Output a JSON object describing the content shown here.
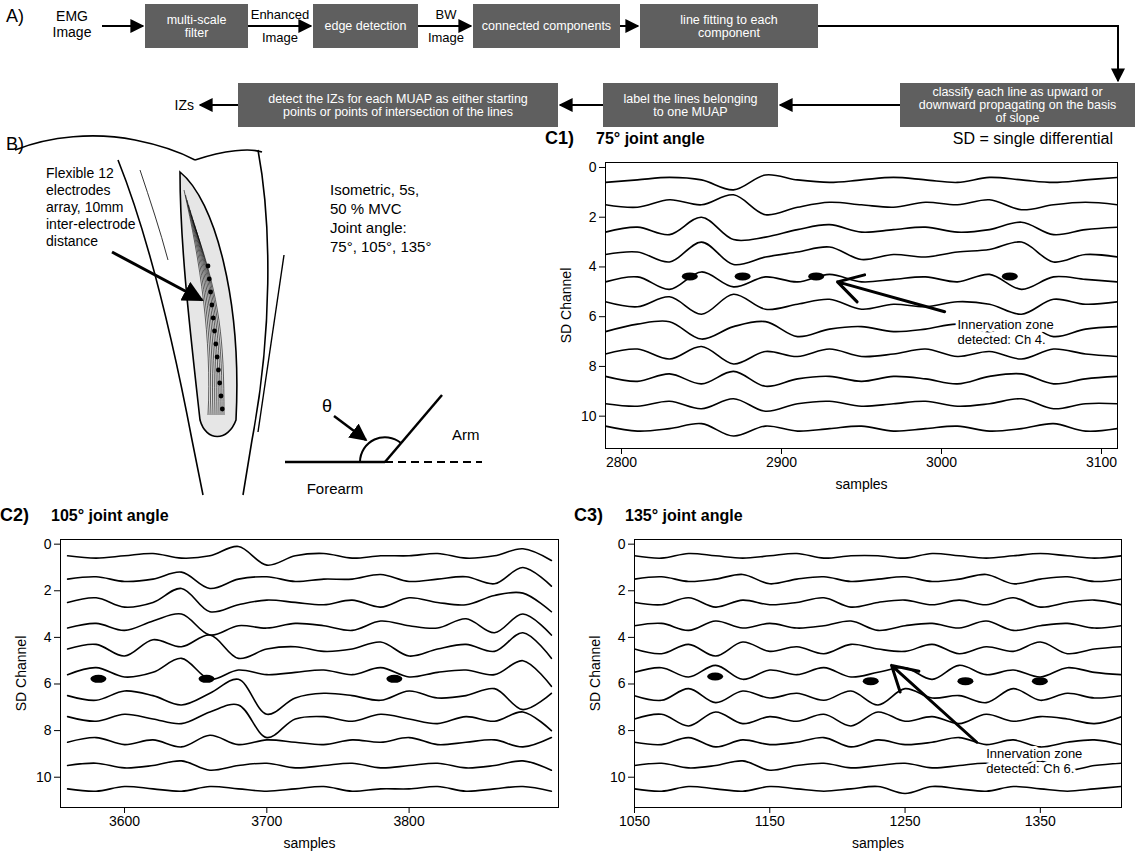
{
  "panel_a": {
    "label": "A)",
    "input": "EMG Image",
    "steps": [
      "multi-scale filter",
      "edge detection",
      "connected components",
      "line fitting to each component",
      "classify each line as upward or downward propagating on the basis of slope",
      "label the lines belonging to one MUAP",
      "detect the IZs for each MUAP as either starting points or points of intersection of the lines"
    ],
    "edge_labels": [
      "Enhanced Image",
      "BW Image"
    ],
    "output": "IZs"
  },
  "panel_b": {
    "label": "B)",
    "electrode_label": "Flexible 12 electrodes array, 10mm inter-electrode distance",
    "protocol": "Isometric, 5s, 50 % MVC",
    "joint_angle_label": "Joint angle:",
    "joint_angles": "75°, 105°, 135°",
    "angle_symbol": "θ",
    "arm_label": "Arm",
    "forearm_label": "Forearm"
  },
  "chart_data": [
    {
      "panel_label": "C1)",
      "type": "line",
      "title": "75° joint angle",
      "subtitle": "SD = single differential",
      "x_label": "samples",
      "y_label": "SD Channel",
      "color": "#000000",
      "xlim": [
        2790,
        3110
      ],
      "xticks": [
        2800,
        2900,
        3000,
        3100
      ],
      "ylim": [
        11.3,
        -0.2
      ],
      "yticks": [
        0,
        2,
        4,
        6,
        8,
        10
      ],
      "x": [
        2790,
        2810,
        2830,
        2850,
        2870,
        2890,
        2910,
        2930,
        2950,
        2970,
        2990,
        3010,
        3030,
        3050,
        3070,
        3090,
        3110
      ],
      "series": [
        {
          "values": [
            0.6,
            0.5,
            0.4,
            0.5,
            0.9,
            0.3,
            0.5,
            0.6,
            0.5,
            0.4,
            0.5,
            0.6,
            0.4,
            0.5,
            0.6,
            0.5,
            0.4
          ]
        },
        {
          "values": [
            1.5,
            1.6,
            1.3,
            1.5,
            1.1,
            1.9,
            1.6,
            1.4,
            1.5,
            1.6,
            1.4,
            1.5,
            1.3,
            1.7,
            1.5,
            1.4,
            1.5
          ]
        },
        {
          "values": [
            2.6,
            2.4,
            2.7,
            2.0,
            2.9,
            2.8,
            2.5,
            2.3,
            2.6,
            2.5,
            2.4,
            2.6,
            2.5,
            2.2,
            2.7,
            2.5,
            2.4
          ]
        },
        {
          "values": [
            3.5,
            3.4,
            3.8,
            3.0,
            3.9,
            3.6,
            3.4,
            3.2,
            3.7,
            3.5,
            3.6,
            3.4,
            3.3,
            3.0,
            3.8,
            3.5,
            3.6
          ]
        },
        {
          "values": [
            4.6,
            4.4,
            4.9,
            4.2,
            4.8,
            4.4,
            4.6,
            4.3,
            4.6,
            4.5,
            4.4,
            4.6,
            4.3,
            4.9,
            4.4,
            4.5,
            4.6
          ]
        },
        {
          "values": [
            5.4,
            5.6,
            5.2,
            5.9,
            5.1,
            5.7,
            5.5,
            5.3,
            5.7,
            5.5,
            5.6,
            5.4,
            5.5,
            5.9,
            5.3,
            5.5,
            5.4
          ]
        },
        {
          "values": [
            6.6,
            6.3,
            6.2,
            6.9,
            6.4,
            6.2,
            6.8,
            6.5,
            6.4,
            6.6,
            6.5,
            6.3,
            6.6,
            6.2,
            6.8,
            6.5,
            6.4
          ]
        },
        {
          "values": [
            7.5,
            7.3,
            7.7,
            7.2,
            7.9,
            7.4,
            7.6,
            7.3,
            7.6,
            7.5,
            7.3,
            7.6,
            7.4,
            7.7,
            7.3,
            7.5,
            7.6
          ]
        },
        {
          "values": [
            8.4,
            8.6,
            8.3,
            8.7,
            8.2,
            8.8,
            8.5,
            8.4,
            8.6,
            8.4,
            8.5,
            8.7,
            8.4,
            8.3,
            8.7,
            8.5,
            8.4
          ]
        },
        {
          "values": [
            9.5,
            9.6,
            9.4,
            9.7,
            9.3,
            9.8,
            9.5,
            9.4,
            9.6,
            9.5,
            9.4,
            9.6,
            9.5,
            9.3,
            9.7,
            9.5,
            9.5
          ]
        },
        {
          "values": [
            10.4,
            10.6,
            10.5,
            10.3,
            10.8,
            10.4,
            10.6,
            10.5,
            10.4,
            10.6,
            10.5,
            10.4,
            10.6,
            10.5,
            10.3,
            10.6,
            10.5
          ]
        },
        {
          "type": "scatter",
          "marker": "ellipse",
          "color": "#000000",
          "x": [
            2843,
            2876,
            2922,
            3043
          ],
          "values": [
            4.4,
            4.4,
            4.4,
            4.4
          ]
        }
      ],
      "annotations": [
        {
          "text": "Innervation zone detected: Ch 4.",
          "x": 3010,
          "y": 6.6,
          "arrow_from": [
            3002,
            5.8
          ],
          "arrow_to": [
            2935,
            4.6
          ]
        }
      ]
    },
    {
      "panel_label": "C2)",
      "type": "line",
      "title": "105° joint angle",
      "x_label": "samples",
      "y_label": "SD Channel",
      "color": "#000000",
      "xlim": [
        3555,
        3905
      ],
      "xticks": [
        3600,
        3700,
        3800
      ],
      "ylim": [
        11.3,
        -0.2
      ],
      "yticks": [
        0,
        2,
        4,
        6,
        8,
        10
      ],
      "x": [
        3560,
        3580,
        3600,
        3620,
        3640,
        3660,
        3680,
        3700,
        3720,
        3740,
        3760,
        3780,
        3800,
        3820,
        3840,
        3860,
        3880,
        3900
      ],
      "series": [
        {
          "values": [
            0.5,
            0.6,
            0.5,
            0.4,
            0.6,
            0.5,
            0.1,
            0.9,
            0.5,
            0.4,
            0.6,
            0.5,
            0.5,
            0.4,
            0.6,
            0.5,
            0.2,
            0.7
          ]
        },
        {
          "values": [
            1.5,
            1.4,
            1.6,
            1.5,
            1.2,
            1.9,
            1.5,
            1.4,
            1.6,
            1.5,
            1.5,
            1.3,
            1.6,
            1.5,
            1.4,
            1.7,
            1.0,
            1.8
          ]
        },
        {
          "values": [
            2.5,
            2.3,
            2.7,
            2.5,
            1.9,
            2.9,
            2.6,
            2.4,
            2.5,
            2.6,
            2.4,
            2.7,
            2.3,
            2.5,
            2.6,
            2.2,
            2.1,
            2.9
          ]
        },
        {
          "values": [
            3.6,
            3.4,
            3.7,
            3.3,
            3.0,
            3.9,
            3.5,
            3.6,
            3.4,
            3.5,
            3.7,
            3.3,
            3.5,
            3.6,
            3.2,
            3.8,
            3.0,
            3.9
          ]
        },
        {
          "values": [
            4.5,
            4.3,
            4.8,
            4.1,
            4.4,
            3.9,
            4.9,
            4.5,
            4.4,
            4.6,
            4.5,
            4.2,
            4.8,
            4.5,
            4.3,
            4.6,
            3.8,
            4.9
          ]
        },
        {
          "values": [
            5.6,
            5.3,
            5.7,
            5.5,
            4.9,
            5.8,
            5.4,
            5.6,
            5.5,
            5.4,
            5.6,
            5.3,
            5.7,
            5.5,
            5.4,
            5.6,
            5.0,
            6.1
          ]
        },
        {
          "values": [
            6.5,
            6.7,
            6.3,
            6.5,
            6.9,
            6.4,
            5.8,
            7.3,
            6.6,
            6.4,
            6.5,
            6.7,
            6.3,
            6.6,
            6.5,
            6.2,
            7.1,
            6.4
          ]
        },
        {
          "values": [
            7.4,
            7.6,
            7.3,
            7.5,
            7.7,
            7.2,
            6.9,
            8.3,
            7.5,
            7.4,
            7.6,
            7.3,
            7.5,
            7.7,
            7.4,
            7.6,
            7.2,
            8.0
          ]
        },
        {
          "values": [
            8.5,
            8.3,
            8.6,
            8.4,
            8.7,
            8.2,
            8.6,
            8.4,
            8.5,
            8.6,
            8.4,
            8.5,
            8.3,
            8.6,
            8.5,
            8.4,
            8.7,
            8.3
          ]
        },
        {
          "values": [
            9.5,
            9.4,
            9.6,
            9.5,
            9.3,
            9.7,
            9.5,
            9.4,
            9.6,
            9.5,
            9.4,
            9.6,
            9.5,
            9.4,
            9.6,
            9.5,
            9.3,
            9.7
          ]
        },
        {
          "values": [
            10.5,
            10.6,
            10.4,
            10.5,
            10.6,
            10.4,
            10.5,
            10.6,
            10.5,
            10.4,
            10.6,
            10.5,
            10.5,
            10.4,
            10.6,
            10.5,
            10.4,
            10.6
          ]
        },
        {
          "type": "scatter",
          "marker": "ellipse",
          "color": "#000000",
          "x": [
            3582,
            3658,
            3790
          ],
          "values": [
            5.8,
            5.8,
            5.8
          ]
        }
      ],
      "annotations": []
    },
    {
      "panel_label": "C3)",
      "type": "line",
      "title": "135° joint angle",
      "x_label": "samples",
      "y_label": "SD Channel",
      "color": "#000000",
      "xlim": [
        1050,
        1410
      ],
      "xticks": [
        1050,
        1150,
        1250,
        1350
      ],
      "ylim": [
        11.3,
        -0.2
      ],
      "yticks": [
        0,
        2,
        4,
        6,
        8,
        10
      ],
      "x": [
        1050,
        1070,
        1090,
        1110,
        1130,
        1150,
        1170,
        1190,
        1210,
        1230,
        1250,
        1270,
        1290,
        1310,
        1330,
        1350,
        1370,
        1390,
        1410
      ],
      "series": [
        {
          "values": [
            0.5,
            0.6,
            0.4,
            0.5,
            0.6,
            0.5,
            0.4,
            0.6,
            0.5,
            0.5,
            0.6,
            0.4,
            0.5,
            0.6,
            0.5,
            0.4,
            0.5,
            0.6,
            0.5
          ]
        },
        {
          "values": [
            1.5,
            1.4,
            1.6,
            1.5,
            1.3,
            1.7,
            1.5,
            1.4,
            1.6,
            1.5,
            1.4,
            1.6,
            1.5,
            1.3,
            1.7,
            1.5,
            1.4,
            1.6,
            1.5
          ]
        },
        {
          "values": [
            2.5,
            2.6,
            2.3,
            2.7,
            2.4,
            2.6,
            2.5,
            2.3,
            2.7,
            2.5,
            2.4,
            2.6,
            2.4,
            2.6,
            2.3,
            2.7,
            2.5,
            2.4,
            2.6
          ]
        },
        {
          "values": [
            3.5,
            3.4,
            3.7,
            3.3,
            3.6,
            3.4,
            3.6,
            3.5,
            3.3,
            3.7,
            3.5,
            3.4,
            3.6,
            3.3,
            3.7,
            3.5,
            3.4,
            3.6,
            3.5
          ]
        },
        {
          "values": [
            4.5,
            4.7,
            4.3,
            4.8,
            4.2,
            4.6,
            4.4,
            4.7,
            4.3,
            4.5,
            4.6,
            4.3,
            4.7,
            4.4,
            4.6,
            4.2,
            4.7,
            4.5,
            4.4
          ]
        },
        {
          "values": [
            5.5,
            5.3,
            5.7,
            5.2,
            5.8,
            5.4,
            5.6,
            5.3,
            5.7,
            5.5,
            5.3,
            5.8,
            5.2,
            5.6,
            5.4,
            5.7,
            5.3,
            5.5,
            5.6
          ]
        },
        {
          "values": [
            6.5,
            6.7,
            6.2,
            6.8,
            6.3,
            6.6,
            6.4,
            6.7,
            6.3,
            6.9,
            6.2,
            6.6,
            6.5,
            6.8,
            6.2,
            6.7,
            6.4,
            6.6,
            6.5
          ]
        },
        {
          "values": [
            7.5,
            7.3,
            7.8,
            7.2,
            7.7,
            7.4,
            7.6,
            7.3,
            7.8,
            7.2,
            7.6,
            7.4,
            7.7,
            7.3,
            7.6,
            7.4,
            7.5,
            7.7,
            7.4
          ]
        },
        {
          "values": [
            8.5,
            8.6,
            8.3,
            8.7,
            8.4,
            8.6,
            8.5,
            8.3,
            8.7,
            8.4,
            8.6,
            8.5,
            8.3,
            8.6,
            8.4,
            8.7,
            8.5,
            8.4,
            8.6
          ]
        },
        {
          "values": [
            9.5,
            9.4,
            9.6,
            9.5,
            9.3,
            9.7,
            9.5,
            9.4,
            9.6,
            9.5,
            9.4,
            9.6,
            9.5,
            9.4,
            9.6,
            9.3,
            9.7,
            9.5,
            9.4
          ]
        },
        {
          "values": [
            10.5,
            10.6,
            10.4,
            10.5,
            10.6,
            10.4,
            10.5,
            10.6,
            10.5,
            10.4,
            10.7,
            10.4,
            10.5,
            10.6,
            10.4,
            10.5,
            10.6,
            10.5,
            10.4
          ]
        },
        {
          "type": "scatter",
          "marker": "ellipse",
          "color": "#000000",
          "x": [
            1110,
            1225,
            1295,
            1350
          ],
          "values": [
            5.7,
            5.9,
            5.9,
            5.9
          ]
        }
      ],
      "annotations": [
        {
          "text": "Innervation zone detected: Ch 6.",
          "x": 1310,
          "y": 9.3,
          "arrow_from": [
            1303,
            8.5
          ],
          "arrow_to": [
            1240,
            5.2
          ]
        }
      ]
    }
  ]
}
